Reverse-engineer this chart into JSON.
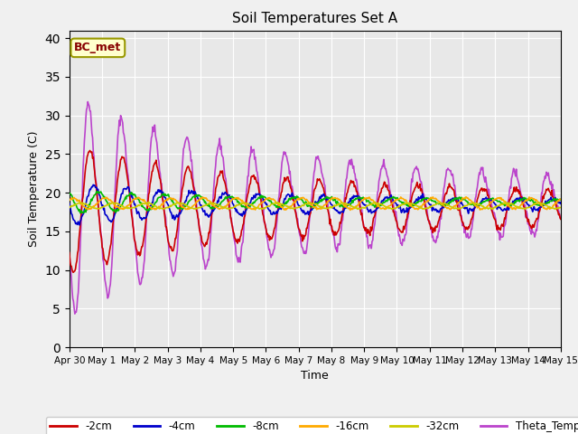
{
  "title": "Soil Temperatures Set A",
  "xlabel": "Time",
  "ylabel": "Soil Temperature (C)",
  "ylim": [
    0,
    41
  ],
  "yticks": [
    0,
    5,
    10,
    15,
    20,
    25,
    30,
    35,
    40
  ],
  "annotation": "BC_met",
  "fig_bg_color": "#f0f0f0",
  "ax_bg_color": "#e8e8e8",
  "series_colors": {
    "-2cm": "#cc0000",
    "-4cm": "#0000cc",
    "-8cm": "#00bb00",
    "-16cm": "#ffaa00",
    "-32cm": "#cccc00",
    "Theta_Temp": "#bb44cc"
  },
  "xtick_labels": [
    "Apr 30",
    "May 1",
    "May 2",
    "May 3",
    "May 4",
    "May 5",
    "May 6",
    "May 7",
    "May 8",
    "May 9",
    "May 10",
    "May 11",
    "May 12",
    "May 13",
    "May 14",
    "May 15"
  ],
  "n_days": 15,
  "points_per_day": 48
}
